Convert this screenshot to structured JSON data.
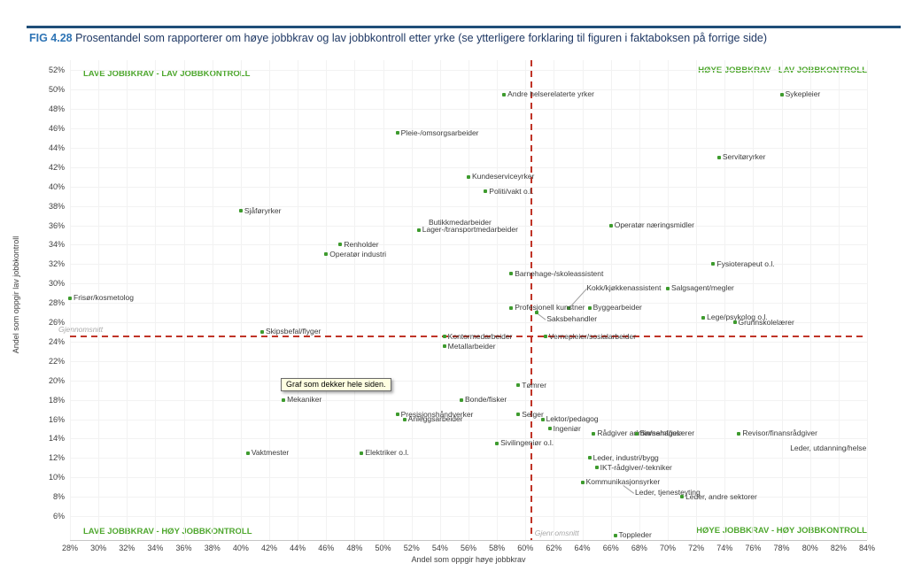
{
  "header": {
    "fig_label": "FIG 4.28",
    "fig_label_color": "#2E74B5",
    "title_rest": " Prosentandel som rapporterer om høye jobbkrav og lav jobbkontroll etter yrke (se ytterligere forklaring til figuren i faktaboksen på forrige side)",
    "title_color": "#1F3864",
    "rule_color": "#1F4E79"
  },
  "tooltip": {
    "text": "Graf som dekker hele siden.",
    "bg": "#FFFFE1"
  },
  "chart_data": {
    "type": "scatter",
    "xlabel": "Andel som oppgir høye jobbkrav",
    "ylabel": "Andel som oppgir lav jobbkontroll",
    "xlim": [
      28,
      84
    ],
    "x_tick_step": 2,
    "ylim": [
      6,
      52
    ],
    "y_tick_step": 2,
    "tick_suffix": "%",
    "grid": true,
    "legend_position": "none",
    "marker_color": "#3E9B2E",
    "label_color": "#3B3B3B",
    "grid_color": "#F2F2F2",
    "avg_line_color": "#C03427",
    "quadrant_color": "#4EA72E",
    "average": {
      "x": 60.4,
      "y": 24.5,
      "label": "Gjennomsnitt"
    },
    "quadrants": {
      "top_left": "LAVE JOBBKRAV - LAV JOBBKONTROLL",
      "top_right": "HØYE JOBBKRAV - LAV JOBBKONTROLL",
      "bottom_left": "LAVE JOBBKRAV - HØY JOBBKONTROLL",
      "bottom_right": "HØYE JOBBKRAV - HØY JOBBKONTROLL"
    },
    "points": [
      {
        "label": "Andre helserelaterte yrker",
        "x": 58.5,
        "y": 49.5
      },
      {
        "label": "Sykepleier",
        "x": 78,
        "y": 49.5
      },
      {
        "label": "Pleie-/omsorgsarbeider",
        "x": 51,
        "y": 45.5
      },
      {
        "label": "Servitøryrker",
        "x": 73.6,
        "y": 43
      },
      {
        "label": "Kundeserviceyrker",
        "x": 56,
        "y": 41
      },
      {
        "label": "Politi/vakt o.l.",
        "x": 57.2,
        "y": 39.5
      },
      {
        "label": "Sjåføryrker",
        "x": 40,
        "y": 37.5
      },
      {
        "label": "Butikkmedarbeider",
        "x": 53.2,
        "y": 36.3,
        "dot": false
      },
      {
        "label": "Lager-/transportmedarbeider",
        "x": 52.5,
        "y": 35.5
      },
      {
        "label": "Operatør næringsmidler",
        "x": 66,
        "y": 36
      },
      {
        "label": "Renholder",
        "x": 47,
        "y": 34
      },
      {
        "label": "Operatør industri",
        "x": 46,
        "y": 33
      },
      {
        "label": "Fysioterapeut o.l.",
        "x": 73.2,
        "y": 32
      },
      {
        "label": "Barnehage-/skoleassistent",
        "x": 59,
        "y": 31
      },
      {
        "label": "Salgsagent/megler",
        "x": 70,
        "y": 29.5
      },
      {
        "label": "Kokk/kjøkkenassistent",
        "x": 63,
        "y": 27.5,
        "lx": 64.3,
        "ly": 29.5,
        "leader": true
      },
      {
        "label": "Profesjonell kunstner",
        "x": 59,
        "y": 27.5
      },
      {
        "label": "Byggearbeider",
        "x": 64.5,
        "y": 27.5
      },
      {
        "label": "Saksbehandler",
        "x": 60.8,
        "y": 27,
        "lx": 61.5,
        "ly": 26.3,
        "leader": true
      },
      {
        "label": "Lege/psykolog o.l.",
        "x": 72.5,
        "y": 26.5
      },
      {
        "label": "Grunnskolelærer",
        "x": 74.7,
        "y": 26
      },
      {
        "label": "Frisør/kosmetolog",
        "x": 28,
        "y": 28.5
      },
      {
        "label": "Skipsbefal/flyger",
        "x": 41.5,
        "y": 25
      },
      {
        "label": "Kontormedarbeider",
        "x": 54.3,
        "y": 24.5
      },
      {
        "label": "Vernepleier/sosialarbeider",
        "x": 61.4,
        "y": 24.5
      },
      {
        "label": "Metallarbeider",
        "x": 54.3,
        "y": 23.5
      },
      {
        "label": "Tømrer",
        "x": 59.5,
        "y": 19.5
      },
      {
        "label": "Bonde/fisker",
        "x": 55.5,
        "y": 18
      },
      {
        "label": "Mekaniker",
        "x": 43,
        "y": 18
      },
      {
        "label": "Selger",
        "x": 59.5,
        "y": 16.5
      },
      {
        "label": "Presisjonshåndverker",
        "x": 51,
        "y": 16.5
      },
      {
        "label": "Anleggsarbeider",
        "x": 51.5,
        "y": 16
      },
      {
        "label": "Lektor/pedagog",
        "x": 61.2,
        "y": 16
      },
      {
        "label": "Ingeniør",
        "x": 61.7,
        "y": 15
      },
      {
        "label": "Rådgiver admin/samf/jus",
        "x": 64.8,
        "y": 14.5
      },
      {
        "label": "Barnehagelærer",
        "x": 67.8,
        "y": 14.5
      },
      {
        "label": "Revisor/finansrådgiver",
        "x": 75,
        "y": 14.5
      },
      {
        "label": "Leder, utdanning/helse",
        "x": 78.6,
        "y": 13,
        "dot": false
      },
      {
        "label": "Sivilingeniør o.l.",
        "x": 58,
        "y": 13.5
      },
      {
        "label": "Vaktmester",
        "x": 40.5,
        "y": 12.5
      },
      {
        "label": "Elektriker o.l.",
        "x": 48.5,
        "y": 12.5
      },
      {
        "label": "Leder, industri/bygg",
        "x": 64.5,
        "y": 12
      },
      {
        "label": "IKT-rådgiver/-tekniker",
        "x": 65,
        "y": 11
      },
      {
        "label": "Kommunikasjonsyrker",
        "x": 64,
        "y": 9.5
      },
      {
        "label": "Leder, tjenesteyting",
        "x": 67.7,
        "y": 8.4,
        "dot": false,
        "leader": true,
        "leader_from": [
          66.9,
          9.2
        ]
      },
      {
        "label": "Leder, andre sektorer",
        "x": 71,
        "y": 8
      },
      {
        "label": "Toppleder",
        "x": 66.3,
        "y": 4
      }
    ]
  }
}
